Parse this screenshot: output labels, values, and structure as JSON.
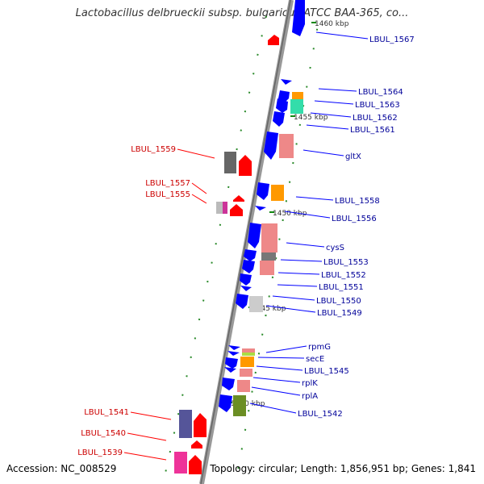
{
  "title": "Lactobacillus delbrueckii subsp. bulgaricus ATCC BAA-365, co...",
  "footer": {
    "accession": "Accession: NC_008529",
    "summary": "Topology: circular; Length: 1,856,951 bp; Genes: 1,841"
  },
  "colors": {
    "backbone": "#888888",
    "forward_strand": "#0000ff",
    "reverse_strand": "#ff0000",
    "forward_label": "#000099",
    "reverse_label": "#cc0000",
    "tick": "#118811"
  },
  "ticks": [
    {
      "label": "1460 kbp"
    },
    {
      "label": "1455 kbp"
    },
    {
      "label": "1450 kbp"
    },
    {
      "label": "1445 kbp"
    },
    {
      "label": "1440 kbp"
    }
  ],
  "labels_right": [
    "LBUL_1567",
    "LBUL_1564",
    "LBUL_1563",
    "LBUL_1562",
    "LBUL_1561",
    "gltX",
    "LBUL_1558",
    "LBUL_1556",
    "cysS",
    "LBUL_1553",
    "LBUL_1552",
    "LBUL_1551",
    "LBUL_1550",
    "LBUL_1549",
    "rpmG",
    "secE",
    "LBUL_1545",
    "rplK",
    "rplA",
    "LBUL_1542"
  ],
  "labels_left": [
    "LBUL_1559",
    "LBUL_1557",
    "LBUL_1555",
    "LBUL_1541",
    "LBUL_1540",
    "LBUL_1539"
  ]
}
